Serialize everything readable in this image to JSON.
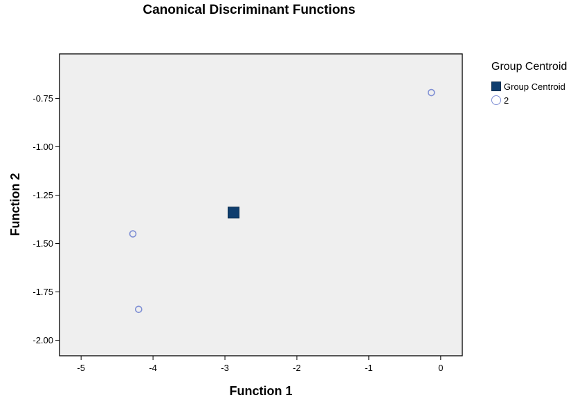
{
  "chart_data": {
    "type": "scatter",
    "title": "Canonical Discriminant Functions",
    "xlabel": "Function 1",
    "ylabel": "Function 2",
    "xlim": [
      -5.3,
      0.3
    ],
    "ylim": [
      -2.08,
      -0.52
    ],
    "x_ticks": [
      -5,
      -4,
      -3,
      -2,
      -1,
      0
    ],
    "y_ticks": [
      -0.75,
      -1.0,
      -1.25,
      -1.5,
      -1.75,
      -2.0
    ],
    "y_tick_labels": [
      "-0.75",
      "-1.00",
      "-1.25",
      "-1.50",
      "-1.75",
      "-2.00"
    ],
    "grid": false,
    "legend_position": "right",
    "legend_title": "Group Centroid",
    "series": [
      {
        "name": "Group Centroid",
        "marker": "square",
        "color": "#0f3e6e",
        "points": [
          {
            "x": -2.88,
            "y": -1.34
          }
        ]
      },
      {
        "name": "2",
        "marker": "circle",
        "color": "#7f8fd4",
        "points": [
          {
            "x": -0.13,
            "y": -0.72
          },
          {
            "x": -4.28,
            "y": -1.45
          },
          {
            "x": -4.2,
            "y": -1.84
          }
        ]
      }
    ],
    "colors": {
      "plot_background": "#efefef"
    }
  }
}
